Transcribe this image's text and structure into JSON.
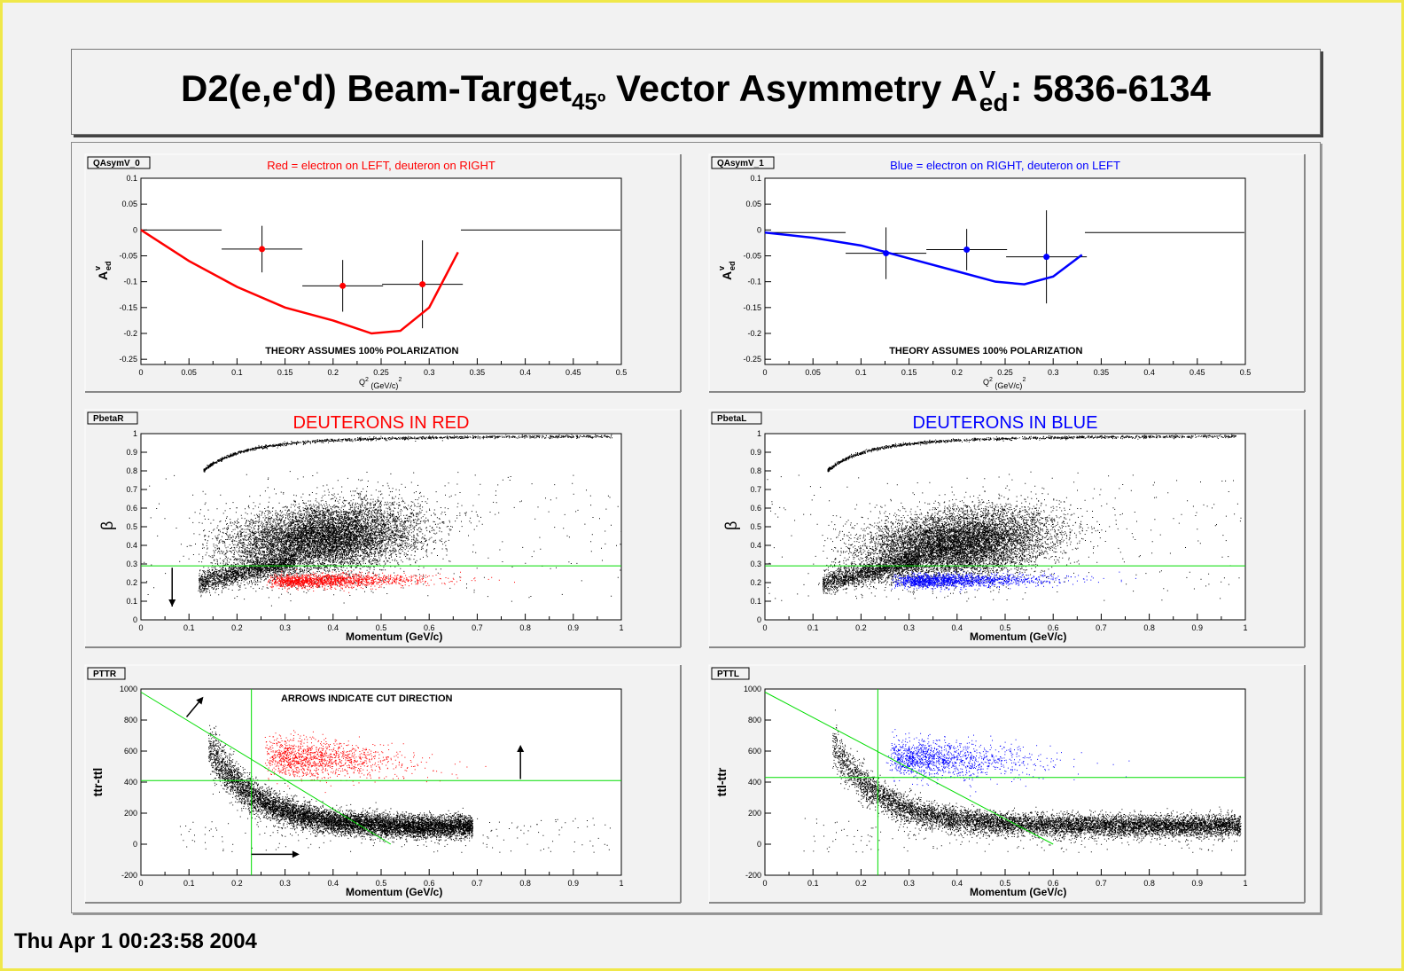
{
  "page_title": {
    "main": "D2(e,e'd) Beam-Target",
    "sub": "45º",
    "mid": " Vector Asymmetry A",
    "sup": "V",
    "sub2": "ed",
    "tail": ": 5836-6134"
  },
  "timestamp": "Thu Apr  1 00:23:58 2004",
  "colors": {
    "red": "#ff0000",
    "blue": "#0000ff",
    "green": "#00dd00",
    "black": "#000000"
  },
  "chart_data": [
    {
      "id": "QAsymV_0",
      "type": "scatter",
      "title": "Red = electron on LEFT, deuteron on RIGHT",
      "title_color": "#ff0000",
      "annotation": "THEORY ASSUMES 100% POLARIZATION",
      "ylabel": "A",
      "ylabel_sup": "v",
      "ylabel_sub": "ed",
      "xlabel": "Q",
      "xlabel_sup": "2",
      "xlabel_unit": " (GeV/c)",
      "xlabel_unit_sup": "2",
      "xlim": [
        0,
        0.5
      ],
      "ylim": [
        -0.26,
        0.1
      ],
      "xticks": [
        "0",
        "0.05",
        "0.1",
        "0.15",
        "0.2",
        "0.25",
        "0.3",
        "0.35",
        "0.4",
        "0.45",
        "0.5"
      ],
      "yticks": [
        "0.1",
        "0.05",
        "0",
        "-0.05",
        "-0.1",
        "-0.15",
        "-0.2",
        "-0.25"
      ],
      "ytick_values": [
        0.1,
        0.05,
        0,
        -0.05,
        -0.1,
        -0.15,
        -0.2,
        -0.25
      ],
      "points": [
        {
          "x": 0.042,
          "y": 0.0,
          "xerr": 0.042,
          "yerr": 0.0
        },
        {
          "x": 0.126,
          "y": -0.037,
          "xerr": 0.042,
          "yerr": 0.045
        },
        {
          "x": 0.21,
          "y": -0.108,
          "xerr": 0.042,
          "yerr": 0.05
        },
        {
          "x": 0.293,
          "y": -0.105,
          "xerr": 0.042,
          "yerr": 0.085
        },
        {
          "x": 0.416,
          "y": 0.0,
          "xerr": 0.083,
          "yerr": 0.0
        }
      ],
      "marker_points": [
        1,
        2,
        3
      ],
      "theory": {
        "x": [
          0,
          0.05,
          0.1,
          0.15,
          0.2,
          0.24,
          0.27,
          0.3,
          0.33
        ],
        "y": [
          0,
          -0.06,
          -0.11,
          -0.15,
          -0.175,
          -0.2,
          -0.195,
          -0.15,
          -0.043
        ]
      },
      "theory_color": "#ff0000"
    },
    {
      "id": "QAsymV_1",
      "type": "scatter",
      "title": "Blue = electron on RIGHT, deuteron on LEFT",
      "title_color": "#0000ff",
      "annotation": "THEORY ASSUMES 100% POLARIZATION",
      "ylabel": "A",
      "ylabel_sup": "v",
      "ylabel_sub": "ed",
      "xlabel": "Q",
      "xlabel_sup": "2",
      "xlabel_unit": " (GeV/c)",
      "xlabel_unit_sup": "2",
      "xlim": [
        0,
        0.5
      ],
      "ylim": [
        -0.26,
        0.1
      ],
      "xticks": [
        "0",
        "0.05",
        "0.1",
        "0.15",
        "0.2",
        "0.25",
        "0.3",
        "0.35",
        "0.4",
        "0.45",
        "0.5"
      ],
      "yticks": [
        "0.1",
        "0.05",
        "0",
        "-0.05",
        "-0.1",
        "-0.15",
        "-0.2",
        "-0.25"
      ],
      "ytick_values": [
        0.1,
        0.05,
        0,
        -0.05,
        -0.1,
        -0.15,
        -0.2,
        -0.25
      ],
      "points": [
        {
          "x": 0.042,
          "y": -0.005,
          "xerr": 0.042,
          "yerr": 0.0
        },
        {
          "x": 0.126,
          "y": -0.045,
          "xerr": 0.042,
          "yerr": 0.05
        },
        {
          "x": 0.21,
          "y": -0.038,
          "xerr": 0.042,
          "yerr": 0.04
        },
        {
          "x": 0.293,
          "y": -0.052,
          "xerr": 0.042,
          "yerr": 0.09
        },
        {
          "x": 0.416,
          "y": -0.005,
          "xerr": 0.083,
          "yerr": 0.0
        }
      ],
      "marker_points": [
        1,
        2,
        3
      ],
      "theory": {
        "x": [
          0,
          0.05,
          0.1,
          0.15,
          0.2,
          0.24,
          0.27,
          0.3,
          0.33
        ],
        "y": [
          -0.005,
          -0.015,
          -0.03,
          -0.055,
          -0.08,
          -0.1,
          -0.105,
          -0.09,
          -0.048
        ]
      },
      "theory_color": "#0000ff"
    },
    {
      "id": "PbetaR",
      "type": "scatter",
      "title": "DEUTERONS IN RED",
      "title_color": "#ff0000",
      "ylabel": "β",
      "xlabel": "Momentum (GeV/c)",
      "xlim": [
        0,
        1
      ],
      "ylim": [
        0,
        1
      ],
      "xticks": [
        "0",
        "0.1",
        "0.2",
        "0.3",
        "0.4",
        "0.5",
        "0.6",
        "0.7",
        "0.8",
        "0.9",
        "1"
      ],
      "yticks": [
        "1",
        "0.9",
        "0.8",
        "0.7",
        "0.6",
        "0.5",
        "0.4",
        "0.3",
        "0.2",
        "0.1",
        "0"
      ],
      "ytick_values": [
        1,
        0.9,
        0.8,
        0.7,
        0.6,
        0.5,
        0.4,
        0.3,
        0.2,
        0.1,
        0
      ],
      "cut_y": 0.29,
      "cut_arrow": {
        "x": 0.065,
        "y_from": 0.28,
        "y_to": 0.1
      }
    },
    {
      "id": "PbetaL",
      "type": "scatter",
      "title": "DEUTERONS IN BLUE",
      "title_color": "#0000ff",
      "ylabel": "β",
      "xlabel": "Momentum (GeV/c)",
      "xlim": [
        0,
        1
      ],
      "ylim": [
        0,
        1
      ],
      "xticks": [
        "0",
        "0.1",
        "0.2",
        "0.3",
        "0.4",
        "0.5",
        "0.6",
        "0.7",
        "0.8",
        "0.9",
        "1"
      ],
      "yticks": [
        "1",
        "0.9",
        "0.8",
        "0.7",
        "0.6",
        "0.5",
        "0.4",
        "0.3",
        "0.2",
        "0.1",
        "0"
      ],
      "ytick_values": [
        1,
        0.9,
        0.8,
        0.7,
        0.6,
        0.5,
        0.4,
        0.3,
        0.2,
        0.1,
        0
      ],
      "cut_y": 0.29
    },
    {
      "id": "PTTR",
      "type": "scatter",
      "title": "",
      "annotation": "ARROWS INDICATE CUT DIRECTION",
      "ylabel": "ttr-ttl",
      "xlabel": "Momentum (GeV/c)",
      "xlim": [
        0,
        1
      ],
      "ylim": [
        -200,
        1000
      ],
      "xticks": [
        "0",
        "0.1",
        "0.2",
        "0.3",
        "0.4",
        "0.5",
        "0.6",
        "0.7",
        "0.8",
        "0.9",
        "1"
      ],
      "yticks": [
        "1000",
        "800",
        "600",
        "400",
        "200",
        "0",
        "-200"
      ],
      "ytick_values": [
        1000,
        800,
        600,
        400,
        200,
        0,
        -200
      ],
      "cut_y": 410,
      "cut_x": 0.23,
      "diag": {
        "x1": 0,
        "y1": 980,
        "x2": 0.52,
        "y2": 0
      },
      "arrows": [
        {
          "x1": 0.095,
          "y1": 820,
          "x2": 0.13,
          "y2": 950
        },
        {
          "x1": 0.23,
          "y1": -65,
          "x2": 0.33,
          "y2": -65
        },
        {
          "x1": 0.79,
          "y1": 420,
          "x2": 0.79,
          "y2": 640
        }
      ]
    },
    {
      "id": "PTTL",
      "type": "scatter",
      "title": "",
      "ylabel": "ttl-ttr",
      "xlabel": "Momentum (GeV/c)",
      "xlim": [
        0,
        1
      ],
      "ylim": [
        -200,
        1000
      ],
      "xticks": [
        "0",
        "0.1",
        "0.2",
        "0.3",
        "0.4",
        "0.5",
        "0.6",
        "0.7",
        "0.8",
        "0.9",
        "1"
      ],
      "yticks": [
        "1000",
        "800",
        "600",
        "400",
        "200",
        "0",
        "-200"
      ],
      "ytick_values": [
        1000,
        800,
        600,
        400,
        200,
        0,
        -200
      ],
      "cut_y": 430,
      "cut_x": 0.235,
      "diag": {
        "x1": 0,
        "y1": 980,
        "x2": 0.6,
        "y2": 0
      }
    }
  ]
}
